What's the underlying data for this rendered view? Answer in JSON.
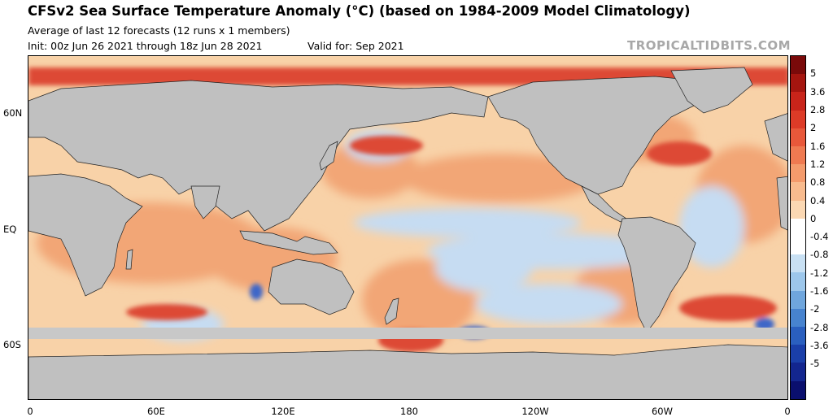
{
  "header": {
    "title": "CFSv2 Sea Surface Temperature Anomaly (°C) (based on 1984-2009 Model Climatology)",
    "subtitle": "Average of last 12 forecasts (12 runs x 1 members)",
    "init": "Init: 00z Jun 26 2021 through 18z Jun 28 2021",
    "valid": "Valid for: Sep 2021",
    "credit": "TROPICALTIDBITS.COM"
  },
  "axes": {
    "lat_labels": [
      "60N",
      "EQ",
      "60S"
    ],
    "lon_labels": [
      "0",
      "60E",
      "120E",
      "180",
      "120W",
      "60W",
      "0"
    ]
  },
  "colorbar": {
    "labels": [
      "5",
      "3.6",
      "2.8",
      "2",
      "1.6",
      "1.2",
      "0.8",
      "0.4",
      "0",
      "-0.4",
      "-0.8",
      "-1.2",
      "-1.6",
      "-2",
      "-2.8",
      "-3.6",
      "-5"
    ],
    "colors": [
      "#7a0a0a",
      "#a5150f",
      "#c8241a",
      "#dd3b27",
      "#e8583a",
      "#ef7a51",
      "#f49b6c",
      "#f8bb8e",
      "#fbd8b3",
      "#ffffff",
      "#ffffff",
      "#c8e0f3",
      "#9dc7eb",
      "#6fa6dd",
      "#4783cf",
      "#2a5fbf",
      "#1a3fa9",
      "#13268f",
      "#0a0f6e"
    ]
  },
  "map_colors": {
    "land": "#c0c0c0",
    "ice": "#c8c8c8",
    "ocean_warm_light": "#f8d2a8",
    "ocean_warm": "#f2a676",
    "ocean_hot": "#dd4a34",
    "ocean_cool": "#c6dcf2",
    "ocean_cold": "#3c66c8"
  }
}
